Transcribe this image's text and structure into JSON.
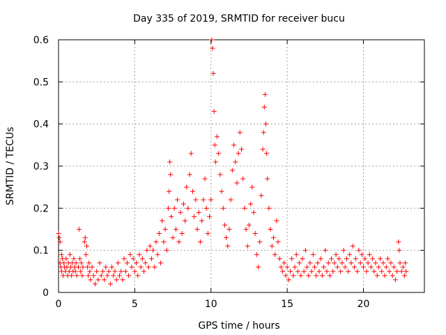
{
  "chart_data": {
    "type": "scatter",
    "title": "Day 335 of 2019, SRMTID for receiver bucu",
    "xlabel": "GPS time / hours",
    "ylabel": "SRMTID / TECUs",
    "xlim": [
      0,
      24
    ],
    "ylim": [
      0,
      0.6
    ],
    "xticks": [
      0,
      5,
      10,
      15,
      20
    ],
    "xtick_labels": [
      "0",
      "5",
      "10",
      "15",
      "20"
    ],
    "yticks": [
      0,
      0.1,
      0.2,
      0.3,
      0.4,
      0.5,
      0.6
    ],
    "ytick_labels": [
      "0",
      "0.1",
      "0.2",
      "0.3",
      "0.4",
      "0.5",
      "0.6"
    ],
    "grid": true,
    "marker": "+",
    "color": "#ff0000",
    "series": [
      {
        "name": "SRMTID",
        "points": [
          [
            0.0,
            0.14
          ],
          [
            0.05,
            0.13
          ],
          [
            0.1,
            0.12
          ],
          [
            0.1,
            0.07
          ],
          [
            0.15,
            0.06
          ],
          [
            0.2,
            0.09
          ],
          [
            0.2,
            0.05
          ],
          [
            0.25,
            0.08
          ],
          [
            0.3,
            0.04
          ],
          [
            0.35,
            0.07
          ],
          [
            0.4,
            0.06
          ],
          [
            0.45,
            0.05
          ],
          [
            0.5,
            0.08
          ],
          [
            0.55,
            0.06
          ],
          [
            0.6,
            0.04
          ],
          [
            0.65,
            0.07
          ],
          [
            0.7,
            0.05
          ],
          [
            0.75,
            0.09
          ],
          [
            0.8,
            0.06
          ],
          [
            0.85,
            0.04
          ],
          [
            0.9,
            0.07
          ],
          [
            0.95,
            0.05
          ],
          [
            1.0,
            0.08
          ],
          [
            1.05,
            0.06
          ],
          [
            1.1,
            0.05
          ],
          [
            1.15,
            0.07
          ],
          [
            1.2,
            0.04
          ],
          [
            1.3,
            0.06
          ],
          [
            1.35,
            0.15
          ],
          [
            1.4,
            0.08
          ],
          [
            1.45,
            0.05
          ],
          [
            1.5,
            0.07
          ],
          [
            1.55,
            0.04
          ],
          [
            1.6,
            0.06
          ],
          [
            1.7,
            0.12
          ],
          [
            1.75,
            0.13
          ],
          [
            1.8,
            0.09
          ],
          [
            1.85,
            0.11
          ],
          [
            1.9,
            0.06
          ],
          [
            1.95,
            0.04
          ],
          [
            2.0,
            0.07
          ],
          [
            2.05,
            0.05
          ],
          [
            2.1,
            0.03
          ],
          [
            2.2,
            0.06
          ],
          [
            2.3,
            0.04
          ],
          [
            2.4,
            0.02
          ],
          [
            2.5,
            0.05
          ],
          [
            2.6,
            0.03
          ],
          [
            2.7,
            0.07
          ],
          [
            2.8,
            0.04
          ],
          [
            2.9,
            0.05
          ],
          [
            3.0,
            0.03
          ],
          [
            3.1,
            0.06
          ],
          [
            3.2,
            0.04
          ],
          [
            3.3,
            0.05
          ],
          [
            3.4,
            0.02
          ],
          [
            3.5,
            0.06
          ],
          [
            3.6,
            0.04
          ],
          [
            3.7,
            0.05
          ],
          [
            3.8,
            0.03
          ],
          [
            3.9,
            0.07
          ],
          [
            4.0,
            0.04
          ],
          [
            4.1,
            0.05
          ],
          [
            4.2,
            0.03
          ],
          [
            4.3,
            0.08
          ],
          [
            4.4,
            0.05
          ],
          [
            4.5,
            0.07
          ],
          [
            4.6,
            0.04
          ],
          [
            4.7,
            0.09
          ],
          [
            4.8,
            0.06
          ],
          [
            4.9,
            0.08
          ],
          [
            5.0,
            0.05
          ],
          [
            5.1,
            0.07
          ],
          [
            5.2,
            0.04
          ],
          [
            5.3,
            0.09
          ],
          [
            5.4,
            0.06
          ],
          [
            5.5,
            0.08
          ],
          [
            5.6,
            0.05
          ],
          [
            5.7,
            0.07
          ],
          [
            5.8,
            0.1
          ],
          [
            5.9,
            0.06
          ],
          [
            6.0,
            0.11
          ],
          [
            6.1,
            0.08
          ],
          [
            6.2,
            0.1
          ],
          [
            6.3,
            0.06
          ],
          [
            6.4,
            0.12
          ],
          [
            6.5,
            0.09
          ],
          [
            6.6,
            0.14
          ],
          [
            6.7,
            0.07
          ],
          [
            6.8,
            0.17
          ],
          [
            6.9,
            0.12
          ],
          [
            7.0,
            0.15
          ],
          [
            7.1,
            0.1
          ],
          [
            7.2,
            0.2
          ],
          [
            7.25,
            0.24
          ],
          [
            7.3,
            0.31
          ],
          [
            7.35,
            0.28
          ],
          [
            7.4,
            0.18
          ],
          [
            7.5,
            0.13
          ],
          [
            7.6,
            0.2
          ],
          [
            7.7,
            0.15
          ],
          [
            7.8,
            0.22
          ],
          [
            7.9,
            0.12
          ],
          [
            8.0,
            0.19
          ],
          [
            8.1,
            0.14
          ],
          [
            8.2,
            0.21
          ],
          [
            8.3,
            0.17
          ],
          [
            8.4,
            0.25
          ],
          [
            8.5,
            0.2
          ],
          [
            8.6,
            0.28
          ],
          [
            8.7,
            0.33
          ],
          [
            8.8,
            0.24
          ],
          [
            8.9,
            0.18
          ],
          [
            9.0,
            0.22
          ],
          [
            9.1,
            0.15
          ],
          [
            9.2,
            0.19
          ],
          [
            9.3,
            0.12
          ],
          [
            9.4,
            0.17
          ],
          [
            9.5,
            0.22
          ],
          [
            9.6,
            0.27
          ],
          [
            9.7,
            0.2
          ],
          [
            9.8,
            0.14
          ],
          [
            9.9,
            0.18
          ],
          [
            10.0,
            0.22
          ],
          [
            10.05,
            0.6
          ],
          [
            10.1,
            0.58
          ],
          [
            10.15,
            0.52
          ],
          [
            10.2,
            0.43
          ],
          [
            10.25,
            0.35
          ],
          [
            10.3,
            0.31
          ],
          [
            10.4,
            0.37
          ],
          [
            10.5,
            0.33
          ],
          [
            10.6,
            0.28
          ],
          [
            10.7,
            0.24
          ],
          [
            10.8,
            0.2
          ],
          [
            10.9,
            0.16
          ],
          [
            11.0,
            0.13
          ],
          [
            11.1,
            0.11
          ],
          [
            11.2,
            0.15
          ],
          [
            11.3,
            0.22
          ],
          [
            11.4,
            0.29
          ],
          [
            11.5,
            0.35
          ],
          [
            11.6,
            0.31
          ],
          [
            11.7,
            0.26
          ],
          [
            11.8,
            0.33
          ],
          [
            11.9,
            0.38
          ],
          [
            12.0,
            0.34
          ],
          [
            12.1,
            0.27
          ],
          [
            12.2,
            0.2
          ],
          [
            12.3,
            0.15
          ],
          [
            12.4,
            0.11
          ],
          [
            12.5,
            0.16
          ],
          [
            12.6,
            0.21
          ],
          [
            12.7,
            0.25
          ],
          [
            12.8,
            0.19
          ],
          [
            12.9,
            0.14
          ],
          [
            13.0,
            0.09
          ],
          [
            13.1,
            0.06
          ],
          [
            13.2,
            0.12
          ],
          [
            13.3,
            0.23
          ],
          [
            13.4,
            0.34
          ],
          [
            13.45,
            0.38
          ],
          [
            13.5,
            0.44
          ],
          [
            13.55,
            0.47
          ],
          [
            13.6,
            0.4
          ],
          [
            13.65,
            0.33
          ],
          [
            13.7,
            0.27
          ],
          [
            13.8,
            0.2
          ],
          [
            13.9,
            0.15
          ],
          [
            14.0,
            0.11
          ],
          [
            14.1,
            0.13
          ],
          [
            14.2,
            0.09
          ],
          [
            14.3,
            0.17
          ],
          [
            14.4,
            0.12
          ],
          [
            14.5,
            0.08
          ],
          [
            14.6,
            0.06
          ],
          [
            14.7,
            0.05
          ],
          [
            14.8,
            0.07
          ],
          [
            14.9,
            0.04
          ],
          [
            15.0,
            0.06
          ],
          [
            15.1,
            0.03
          ],
          [
            15.2,
            0.05
          ],
          [
            15.3,
            0.08
          ],
          [
            15.4,
            0.04
          ],
          [
            15.5,
            0.06
          ],
          [
            15.6,
            0.09
          ],
          [
            15.7,
            0.05
          ],
          [
            15.8,
            0.07
          ],
          [
            15.9,
            0.04
          ],
          [
            16.0,
            0.08
          ],
          [
            16.1,
            0.05
          ],
          [
            16.2,
            0.1
          ],
          [
            16.3,
            0.06
          ],
          [
            16.4,
            0.04
          ],
          [
            16.5,
            0.07
          ],
          [
            16.6,
            0.05
          ],
          [
            16.7,
            0.09
          ],
          [
            16.8,
            0.06
          ],
          [
            16.9,
            0.04
          ],
          [
            17.0,
            0.07
          ],
          [
            17.1,
            0.05
          ],
          [
            17.2,
            0.08
          ],
          [
            17.3,
            0.04
          ],
          [
            17.4,
            0.06
          ],
          [
            17.5,
            0.1
          ],
          [
            17.6,
            0.05
          ],
          [
            17.7,
            0.07
          ],
          [
            17.8,
            0.04
          ],
          [
            17.9,
            0.08
          ],
          [
            18.0,
            0.05
          ],
          [
            18.1,
            0.07
          ],
          [
            18.2,
            0.09
          ],
          [
            18.3,
            0.06
          ],
          [
            18.4,
            0.08
          ],
          [
            18.5,
            0.05
          ],
          [
            18.6,
            0.07
          ],
          [
            18.7,
            0.1
          ],
          [
            18.8,
            0.06
          ],
          [
            18.9,
            0.08
          ],
          [
            19.0,
            0.05
          ],
          [
            19.1,
            0.09
          ],
          [
            19.2,
            0.07
          ],
          [
            19.3,
            0.11
          ],
          [
            19.4,
            0.06
          ],
          [
            19.5,
            0.08
          ],
          [
            19.6,
            0.05
          ],
          [
            19.7,
            0.1
          ],
          [
            19.8,
            0.07
          ],
          [
            19.9,
            0.09
          ],
          [
            20.0,
            0.06
          ],
          [
            20.1,
            0.08
          ],
          [
            20.2,
            0.05
          ],
          [
            20.3,
            0.07
          ],
          [
            20.4,
            0.09
          ],
          [
            20.5,
            0.06
          ],
          [
            20.6,
            0.08
          ],
          [
            20.7,
            0.05
          ],
          [
            20.8,
            0.07
          ],
          [
            20.9,
            0.04
          ],
          [
            21.0,
            0.06
          ],
          [
            21.1,
            0.08
          ],
          [
            21.2,
            0.05
          ],
          [
            21.3,
            0.07
          ],
          [
            21.4,
            0.04
          ],
          [
            21.5,
            0.06
          ],
          [
            21.6,
            0.08
          ],
          [
            21.7,
            0.05
          ],
          [
            21.8,
            0.07
          ],
          [
            21.9,
            0.04
          ],
          [
            22.0,
            0.06
          ],
          [
            22.1,
            0.03
          ],
          [
            22.2,
            0.05
          ],
          [
            22.3,
            0.12
          ],
          [
            22.35,
            0.1
          ],
          [
            22.4,
            0.07
          ],
          [
            22.5,
            0.05
          ],
          [
            22.6,
            0.06
          ],
          [
            22.7,
            0.04
          ],
          [
            22.75,
            0.07
          ],
          [
            22.8,
            0.05
          ]
        ]
      }
    ]
  }
}
